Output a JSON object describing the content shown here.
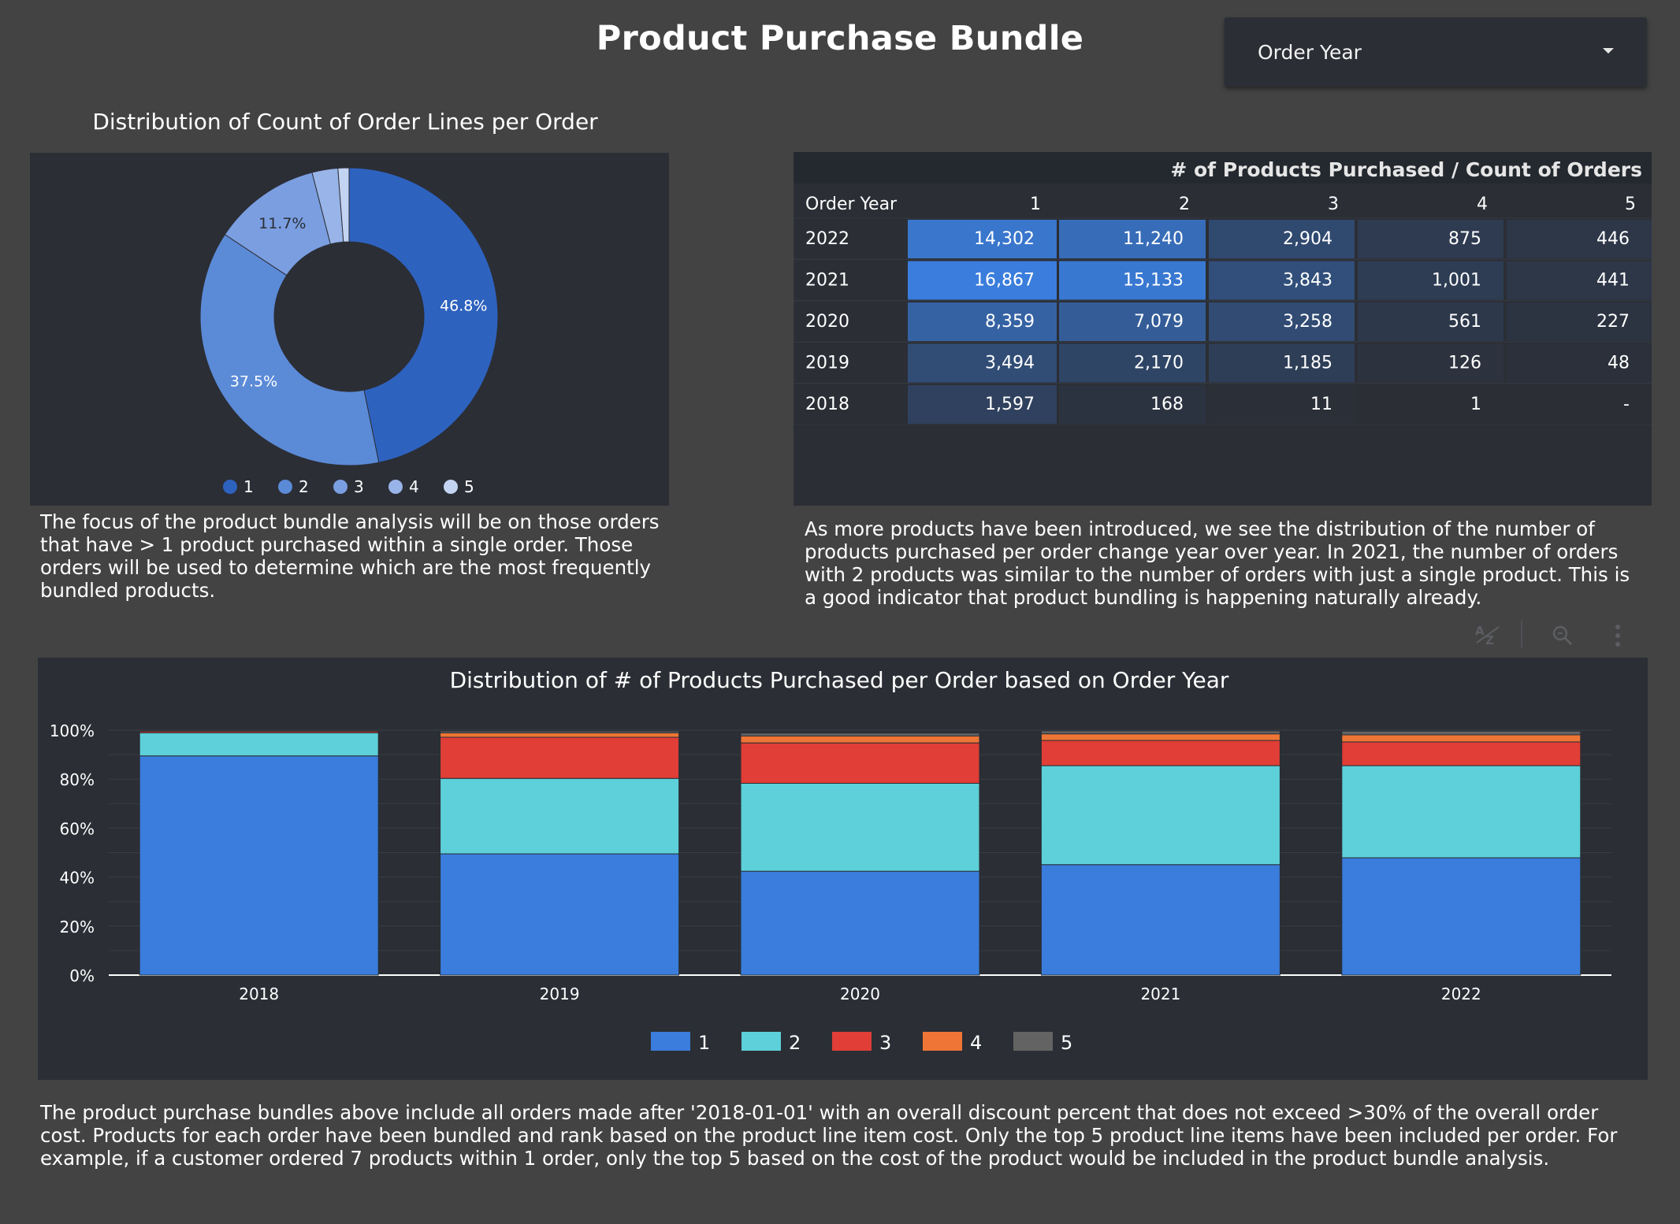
{
  "header": {
    "title": "Product Purchase Bundle",
    "filter_label": "Order Year"
  },
  "colors": {
    "background": "#434343",
    "panel": "#2b2e35",
    "series_1": "#3a7ddc",
    "series_2": "#5dd0d9",
    "series_3": "#e03e36",
    "series_4": "#ee7535",
    "series_5": "#636363",
    "donut_1": "#2e62bf",
    "donut_2": "#5b8ad7",
    "donut_3": "#7a9ee0",
    "donut_4": "#98b4e8",
    "donut_5": "#c3d3f2"
  },
  "donut": {
    "title": "Distribution of Count of Order Lines per Order",
    "legend": [
      "1",
      "2",
      "3",
      "4",
      "5"
    ]
  },
  "table": {
    "title": "# of Products Purchased / Count of Orders",
    "row_header": "Order Year",
    "columns": [
      "1",
      "2",
      "3",
      "4",
      "5"
    ],
    "rows": [
      {
        "year": "2022",
        "values": [
          "14,302",
          "11,240",
          "2,904",
          "875",
          "446"
        ]
      },
      {
        "year": "2021",
        "values": [
          "16,867",
          "15,133",
          "3,843",
          "1,001",
          "441"
        ]
      },
      {
        "year": "2020",
        "values": [
          "8,359",
          "7,079",
          "3,258",
          "561",
          "227"
        ]
      },
      {
        "year": "2019",
        "values": [
          "3,494",
          "2,170",
          "1,185",
          "126",
          "48"
        ]
      },
      {
        "year": "2018",
        "values": [
          "1,597",
          "168",
          "11",
          "1",
          "-"
        ]
      }
    ]
  },
  "notes": {
    "left": "The focus of the product bundle analysis will be on those orders that have > 1 product purchased within a single order. Those orders will be used to determine which are the most frequently bundled products.",
    "right": "As more products have been introduced, we see the distribution of the number of products purchased per order change year over year. In 2021, the number of orders with 2 products was similar to the number of orders with just a single product. This is a good indicator that product bundling is happening naturally already.",
    "bottom": "The product purchase bundles above include all orders made after '2018-01-01' with an overall discount percent that does not exceed >30% of the overall order cost. Products for each order have been bundled and rank based on the product line item cost. Only the top 5 product line items have been included per order. For example, if a customer ordered 7 products within 1 order, only the top 5 based on the cost of the product would be included in the product bundle analysis."
  },
  "toolbar": {
    "sort_icon": "sort-az-icon",
    "explore_icon": "zoom-icon",
    "more_icon": "more-vertical-icon"
  },
  "chart_data": [
    {
      "type": "pie",
      "title": "Distribution of Count of Order Lines per Order",
      "labels": [
        "1",
        "2",
        "3",
        "4",
        "5"
      ],
      "values": [
        46.8,
        37.5,
        11.7,
        2.8,
        1.2
      ],
      "data_labels": [
        "46.8%",
        "37.5%",
        "11.7%",
        "",
        ""
      ],
      "donut": true,
      "legend": "bottom"
    },
    {
      "type": "bar",
      "stacked": true,
      "normalized": true,
      "title": "Distribution of # of Products Purchased per Order based on Order Year",
      "categories": [
        "2018",
        "2019",
        "2020",
        "2021",
        "2022"
      ],
      "series": [
        {
          "name": "1",
          "values": [
            89.5,
            49.5,
            42.4,
            45.1,
            47.9
          ]
        },
        {
          "name": "2",
          "values": [
            9.4,
            30.8,
            35.9,
            40.4,
            37.6
          ]
        },
        {
          "name": "3",
          "values": [
            0.6,
            16.8,
            16.5,
            10.3,
            9.7
          ]
        },
        {
          "name": "4",
          "values": [
            0.1,
            1.8,
            2.8,
            2.7,
            2.9
          ]
        },
        {
          "name": "5",
          "values": [
            0.0,
            0.7,
            1.2,
            1.2,
            1.5
          ]
        }
      ],
      "y_ticks": [
        "0%",
        "20%",
        "40%",
        "60%",
        "80%",
        "100%"
      ],
      "ylim": [
        0,
        100
      ],
      "legend": "bottom",
      "grid": true
    }
  ]
}
